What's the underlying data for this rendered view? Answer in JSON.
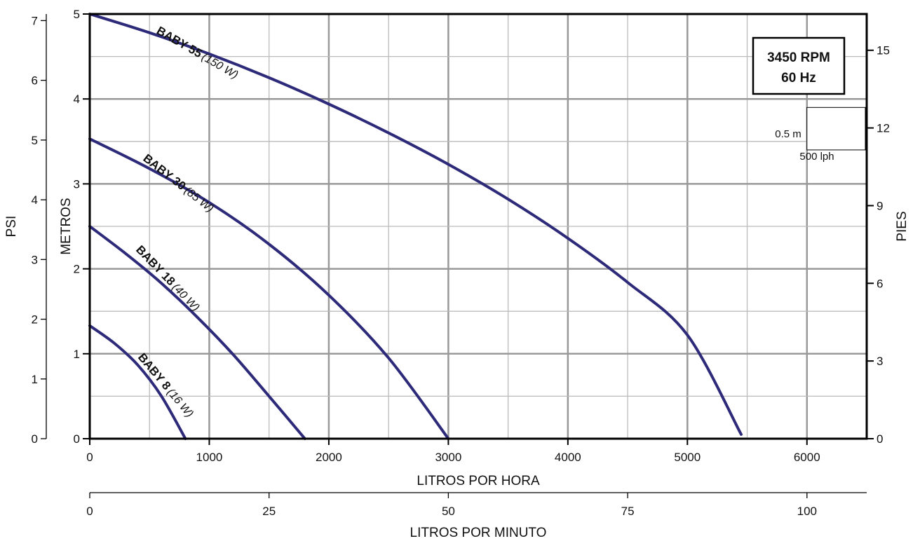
{
  "chart_data": {
    "type": "line",
    "x": {
      "label": "LITROS POR HORA",
      "lim": [
        0,
        6500
      ],
      "ticks": [
        0,
        1000,
        2000,
        3000,
        4000,
        5000,
        6000
      ],
      "minor_step": 500
    },
    "x2": {
      "label": "LITROS POR MINUTO",
      "lim": [
        0,
        108.33
      ],
      "ticks": [
        0,
        25,
        50,
        75,
        100
      ]
    },
    "y_left": {
      "label": "METROS",
      "lim": [
        0,
        5
      ],
      "ticks": [
        0,
        1,
        2,
        3,
        4,
        5
      ],
      "minor_step": 0.5
    },
    "y_psi": {
      "label": "PSI",
      "lim": [
        0,
        7.11
      ],
      "ticks": [
        0,
        1,
        2,
        3,
        4,
        5,
        6,
        7
      ]
    },
    "y_right": {
      "label": "PIES",
      "lim": [
        0,
        16.4
      ],
      "ticks": [
        0,
        3,
        6,
        9,
        12,
        15
      ]
    },
    "grid": true,
    "series": [
      {
        "name": "BABY 55",
        "power": "(150 W)",
        "x": [
          0,
          500,
          1000,
          1500,
          2000,
          2500,
          3000,
          3500,
          4000,
          4500,
          5000,
          5450
        ],
        "y": [
          5.0,
          4.78,
          4.53,
          4.25,
          3.94,
          3.6,
          3.23,
          2.82,
          2.36,
          1.84,
          1.22,
          0.05
        ]
      },
      {
        "name": "BABY 30",
        "power": "(85 W)",
        "x": [
          0,
          500,
          1000,
          1500,
          2000,
          2500,
          3000
        ],
        "y": [
          3.53,
          3.18,
          2.78,
          2.29,
          1.69,
          0.95,
          0.0
        ]
      },
      {
        "name": "BABY 18",
        "power": "(40 W)",
        "x": [
          0,
          300,
          600,
          900,
          1200,
          1500,
          1800
        ],
        "y": [
          2.5,
          2.18,
          1.83,
          1.43,
          0.99,
          0.5,
          0.0
        ]
      },
      {
        "name": "BABY 8",
        "power": "(16 W)",
        "x": [
          0,
          200,
          400,
          600,
          800
        ],
        "y": [
          1.33,
          1.13,
          0.87,
          0.5,
          0.0
        ]
      }
    ],
    "line_color": "#2e2a7a",
    "info_box": {
      "line1": "3450 RPM",
      "line2": "60 Hz"
    },
    "scale_legend": {
      "height": "0.5 m",
      "width": "500 lph"
    }
  }
}
